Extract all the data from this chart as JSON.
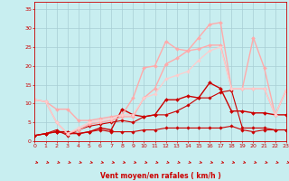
{
  "xlabel": "Vent moyen/en rafales ( km/h )",
  "ylabel": "",
  "xlim": [
    0,
    23
  ],
  "ylim": [
    0,
    37
  ],
  "yticks": [
    0,
    5,
    10,
    15,
    20,
    25,
    30,
    35
  ],
  "xticks": [
    0,
    1,
    2,
    3,
    4,
    5,
    6,
    7,
    8,
    9,
    10,
    11,
    12,
    13,
    14,
    15,
    16,
    17,
    18,
    19,
    20,
    21,
    22,
    23
  ],
  "bg_color": "#c8eef0",
  "grid_color": "#a8cdd4",
  "text_color": "#cc0000",
  "arrow_color": "#cc0000",
  "series": [
    {
      "x": [
        0,
        1,
        2,
        3,
        4,
        5,
        6,
        7,
        8,
        9,
        10,
        11,
        12,
        13,
        14,
        15,
        16,
        17,
        18,
        19,
        20,
        21,
        22,
        23
      ],
      "y": [
        1.5,
        2.0,
        2.5,
        2.0,
        2.0,
        2.5,
        3.0,
        2.5,
        2.5,
        2.5,
        3.0,
        3.0,
        3.5,
        3.5,
        3.5,
        3.5,
        3.5,
        3.5,
        4.0,
        3.0,
        2.5,
        3.0,
        3.0,
        3.0
      ],
      "color": "#cc0000",
      "lw": 0.8,
      "marker": "D",
      "ms": 1.8
    },
    {
      "x": [
        0,
        1,
        2,
        3,
        4,
        5,
        6,
        7,
        8,
        9,
        10,
        11,
        12,
        13,
        14,
        15,
        16,
        17,
        18,
        19,
        20,
        21,
        22,
        23
      ],
      "y": [
        1.5,
        2.0,
        2.5,
        2.5,
        2.0,
        2.5,
        3.5,
        3.0,
        8.5,
        7.0,
        6.5,
        7.0,
        11.0,
        11.0,
        12.0,
        11.5,
        15.5,
        14.0,
        8.0,
        8.0,
        7.5,
        7.5,
        7.0,
        7.0
      ],
      "color": "#cc0000",
      "lw": 1.0,
      "marker": "D",
      "ms": 2.0
    },
    {
      "x": [
        0,
        1,
        2,
        3,
        4,
        5,
        6,
        7,
        8,
        9,
        10,
        11,
        12,
        13,
        14,
        15,
        16,
        17,
        18,
        19,
        20,
        21,
        22,
        23
      ],
      "y": [
        11.0,
        10.5,
        8.5,
        8.5,
        5.5,
        5.5,
        6.0,
        6.5,
        7.0,
        11.5,
        19.5,
        20.0,
        26.5,
        24.5,
        24.0,
        27.5,
        31.0,
        31.5,
        14.0,
        14.0,
        27.5,
        19.5,
        7.0,
        13.5
      ],
      "color": "#ffaaaa",
      "lw": 1.0,
      "marker": "D",
      "ms": 2.0
    },
    {
      "x": [
        0,
        1,
        2,
        3,
        4,
        5,
        6,
        7,
        8,
        9,
        10,
        11,
        12,
        13,
        14,
        15,
        16,
        17,
        18,
        19,
        20,
        21,
        22,
        23
      ],
      "y": [
        1.5,
        2.0,
        3.0,
        1.5,
        3.0,
        4.0,
        4.5,
        5.0,
        5.5,
        5.0,
        6.5,
        7.0,
        7.0,
        8.0,
        9.5,
        11.5,
        11.5,
        13.0,
        13.5,
        3.5,
        3.5,
        3.5,
        3.0,
        3.0
      ],
      "color": "#cc0000",
      "lw": 0.8,
      "marker": "D",
      "ms": 1.8
    },
    {
      "x": [
        0,
        1,
        2,
        3,
        4,
        5,
        6,
        7,
        8,
        9,
        10,
        11,
        12,
        13,
        14,
        15,
        16,
        17,
        18,
        19,
        20,
        21,
        22,
        23
      ],
      "y": [
        11.0,
        10.5,
        5.0,
        2.0,
        3.0,
        4.5,
        5.0,
        5.5,
        6.5,
        6.5,
        11.5,
        14.0,
        20.5,
        22.0,
        24.0,
        24.5,
        25.5,
        25.5,
        14.0,
        14.0,
        14.0,
        14.0,
        7.0,
        13.5
      ],
      "color": "#ffaaaa",
      "lw": 1.0,
      "marker": "D",
      "ms": 2.0
    },
    {
      "x": [
        0,
        1,
        2,
        3,
        4,
        5,
        6,
        7,
        8,
        9,
        10,
        11,
        12,
        13,
        14,
        15,
        16,
        17,
        18,
        19,
        20,
        21,
        22,
        23
      ],
      "y": [
        11.0,
        10.5,
        5.0,
        2.0,
        3.5,
        5.0,
        5.5,
        6.0,
        7.0,
        7.0,
        11.5,
        12.5,
        16.5,
        17.5,
        18.5,
        21.5,
        24.0,
        25.0,
        14.0,
        14.0,
        14.0,
        14.0,
        7.0,
        13.5
      ],
      "color": "#ffcccc",
      "lw": 0.9,
      "marker": "D",
      "ms": 1.8
    }
  ]
}
